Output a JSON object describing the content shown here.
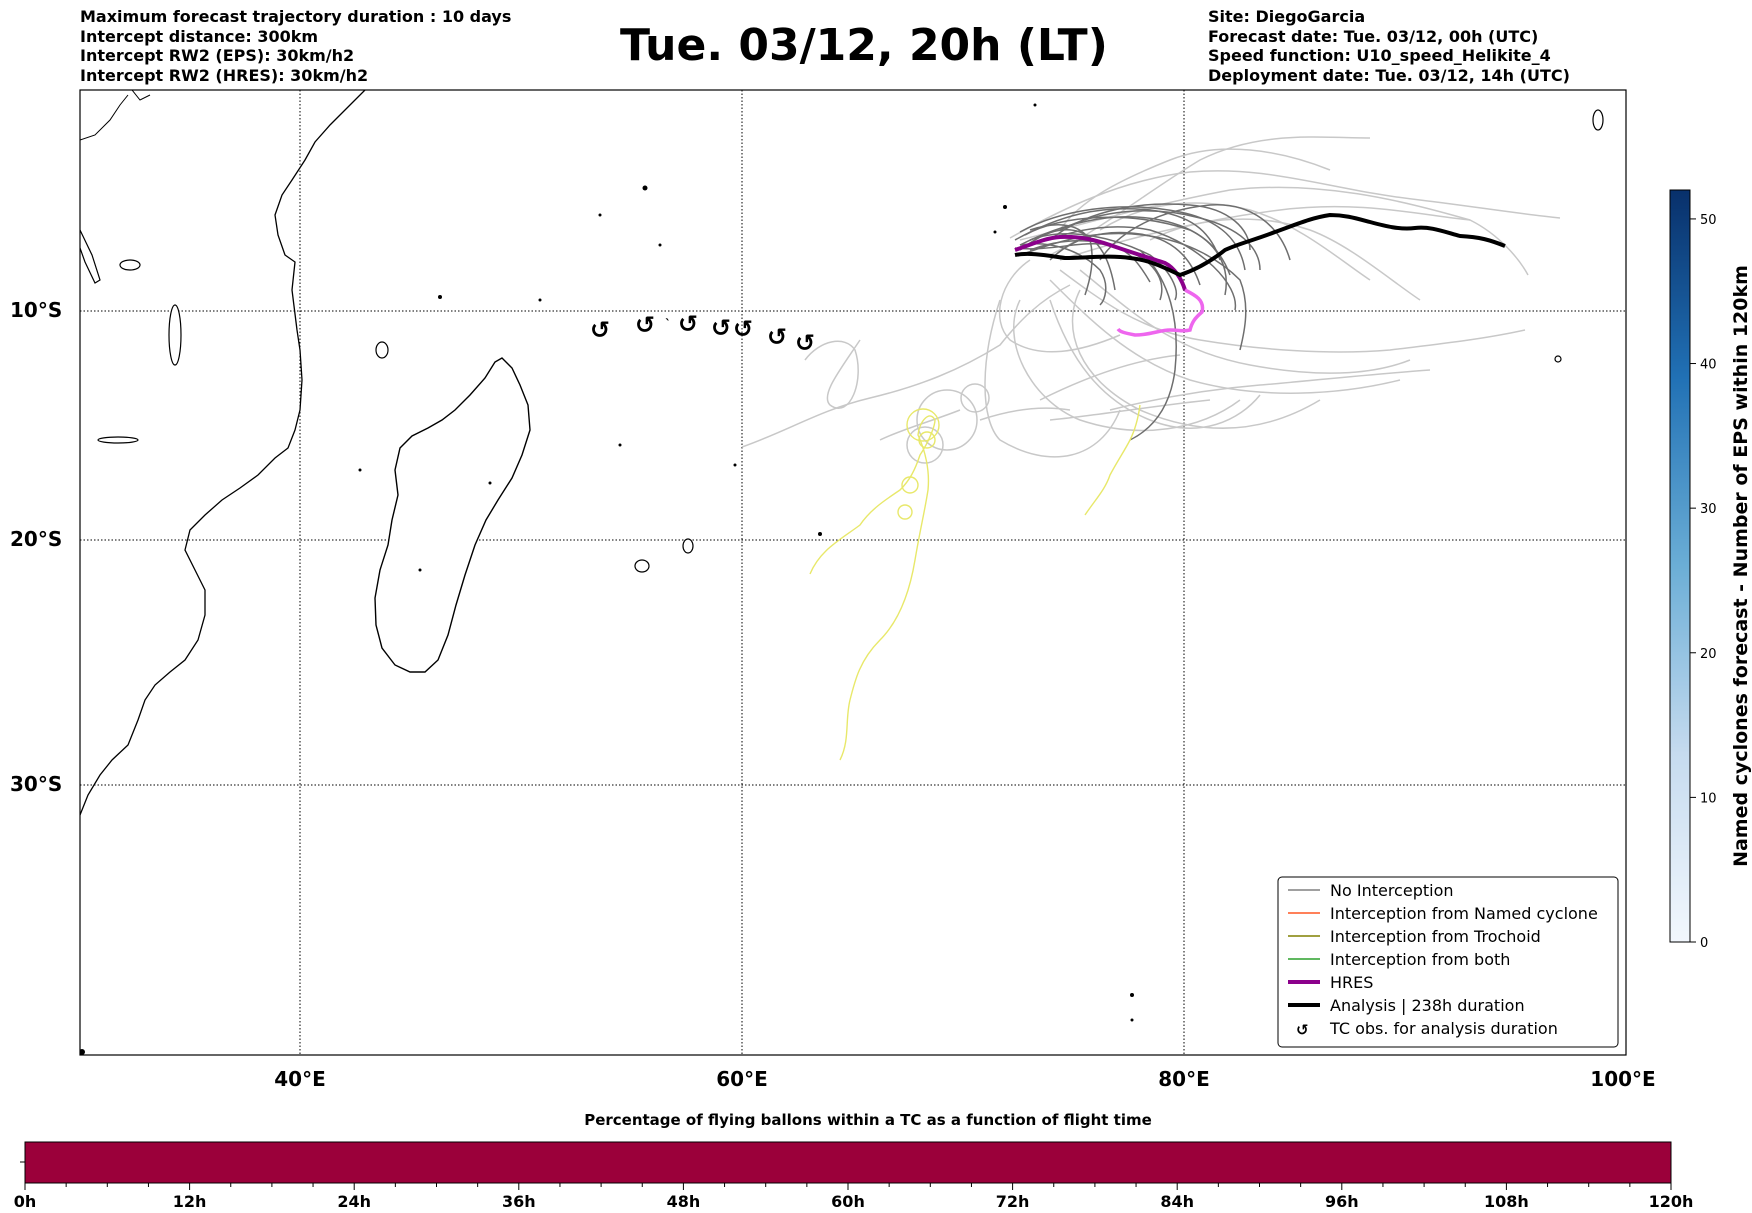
{
  "header_left": [
    "Maximum forecast trajectory duration : 10 days",
    "Intercept distance: 300km",
    "Intercept RW2 (EPS):  30km/h2",
    "Intercept RW2 (HRES): 30km/h2"
  ],
  "header_right": [
    "Site: DiegoGarcia",
    "Forecast date: Tue. 03/12, 00h (UTC)",
    "Speed function: U10_speed_Helikite_4",
    "Deployment date: Tue. 03/12, 14h (UTC)"
  ],
  "title": "Tue. 03/12, 20h (LT)",
  "map": {
    "lon_ticks": [
      "40°E",
      "60°E",
      "80°E",
      "100°E"
    ],
    "lat_ticks": [
      "10°S",
      "20°S",
      "30°S"
    ],
    "extent": {
      "lon": [
        30,
        100
      ],
      "lat": [
        -43,
        1
      ]
    }
  },
  "legend": [
    {
      "label": "No Interception",
      "color": "#808080"
    },
    {
      "label": "Interception from Named cyclone",
      "color": "#ff5722"
    },
    {
      "label": "Interception from Trochoid",
      "color": "#808000"
    },
    {
      "label": "Interception from both",
      "color": "#2ca02c"
    },
    {
      "label": "HRES",
      "color": "#8b008b"
    },
    {
      "label": "Analysis | 238h duration",
      "color": "#000000"
    },
    {
      "label": "TC obs. for analysis duration",
      "color": "#000000"
    }
  ],
  "colorbar_right": {
    "label": "Named cyclones forecast - Number of EPS within 120km",
    "ticks": [
      "0",
      "10",
      "20",
      "30",
      "40",
      "50"
    ],
    "max": 52
  },
  "colorbar_bottom": {
    "title": "Percentage of flying ballons within a TC as a function of flight time",
    "ticks": [
      "0h",
      "12h",
      "24h",
      "36h",
      "48h",
      "60h",
      "72h",
      "84h",
      "96h",
      "108h",
      "120h"
    ],
    "color": "#9b003a"
  },
  "tc_obs_symbol": "↺"
}
